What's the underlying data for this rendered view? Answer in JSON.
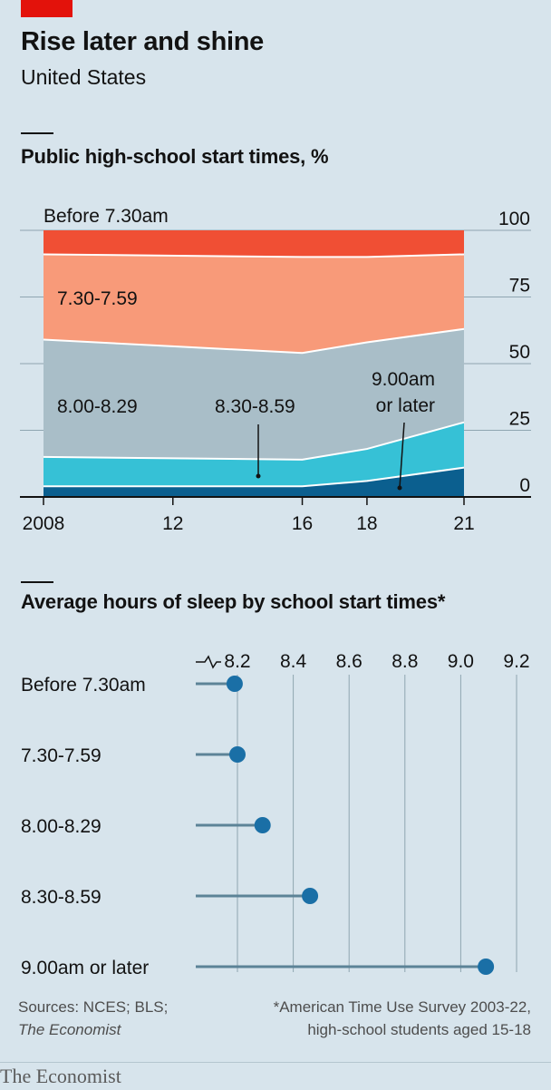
{
  "header": {
    "title": "Rise later and shine",
    "subtitle": "United States"
  },
  "chart_data": [
    {
      "type": "area",
      "title": "Public high-school start times, %",
      "x": [
        2008,
        2016,
        2018,
        2021
      ],
      "xticks": [
        "2008",
        "12",
        "16",
        "18",
        "21"
      ],
      "xtick_values": [
        2008,
        2012,
        2016,
        2018,
        2021
      ],
      "yticks": [
        "0",
        "25",
        "50",
        "75",
        "100"
      ],
      "ytick_values": [
        0,
        25,
        50,
        75,
        100
      ],
      "ylim": [
        0,
        100
      ],
      "stacked": true,
      "series": [
        {
          "name": "9.00am or later",
          "color": "#0b5f8f",
          "values": [
            4,
            4,
            6,
            11
          ]
        },
        {
          "name": "8.30-8.59",
          "color": "#36c1d6",
          "values": [
            11,
            10,
            12,
            17
          ]
        },
        {
          "name": "8.00-8.29",
          "color": "#a9bec8",
          "values": [
            44,
            40,
            40,
            35
          ]
        },
        {
          "name": "7.30-7.59",
          "color": "#f89a79",
          "values": [
            32,
            36,
            32,
            28
          ]
        },
        {
          "name": "Before 7.30am",
          "color": "#f04f34",
          "values": [
            9,
            10,
            10,
            9
          ]
        }
      ]
    },
    {
      "type": "lollipop",
      "title": "Average hours of sleep by school start times*",
      "xticks": [
        "8.2",
        "8.4",
        "8.6",
        "8.8",
        "9.0",
        "9.2"
      ],
      "xtick_values": [
        8.2,
        8.4,
        8.6,
        8.8,
        9.0,
        9.2
      ],
      "xlim": [
        8.2,
        9.2
      ],
      "broken_axis": true,
      "color": "#1a6fa6",
      "categories": [
        "Before 7.30am",
        "7.30-7.59",
        "8.00-8.29",
        "8.30-8.59",
        "9.00am or later"
      ],
      "values": [
        8.19,
        8.2,
        8.29,
        8.46,
        9.09
      ]
    }
  ],
  "footer": {
    "sources": "Sources: NCES; BLS;",
    "sources_publication": "The Economist",
    "footnote_line1": "*American Time Use Survey 2003-22,",
    "footnote_line2": "high-school students aged 15-18",
    "brand": "The Economist"
  }
}
